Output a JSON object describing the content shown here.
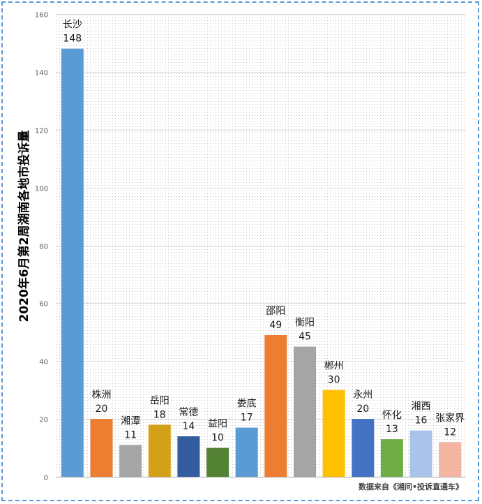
{
  "chart_data": {
    "type": "bar",
    "title": "",
    "xlabel": "",
    "ylabel": "2020年6月第2周湖南各地市投诉量",
    "ylim": [
      0,
      160
    ],
    "yticks": [
      0,
      20,
      40,
      60,
      80,
      100,
      120,
      140,
      160
    ],
    "categories": [
      "长沙",
      "株洲",
      "湘潭",
      "岳阳",
      "常德",
      "益阳",
      "娄底",
      "邵阳",
      "衡阳",
      "郴州",
      "永州",
      "怀化",
      "湘西",
      "张家界"
    ],
    "values": [
      148,
      20,
      11,
      18,
      14,
      10,
      17,
      49,
      45,
      30,
      20,
      13,
      16,
      12
    ],
    "colors": [
      "#5b9bd5",
      "#ed7d31",
      "#a5a5a5",
      "#d4a017",
      "#335c9e",
      "#548235",
      "#5b9bd5",
      "#ed7d31",
      "#a5a5a5",
      "#ffc000",
      "#4472c4",
      "#70ad47",
      "#a9c4e8",
      "#f4b6a2"
    ],
    "grid": true
  },
  "source_note": "数据来自《湘问•投诉直通车》"
}
